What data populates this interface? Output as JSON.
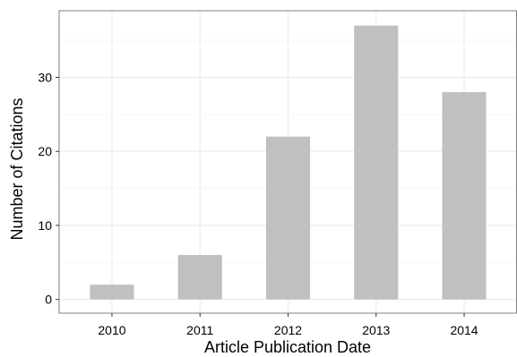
{
  "chart_data": {
    "type": "bar",
    "title": "",
    "xlabel": "Article Publication Date",
    "ylabel": "Number of Citations",
    "categories": [
      "2010",
      "2011",
      "2012",
      "2013",
      "2014"
    ],
    "values": [
      2,
      6,
      22,
      37,
      28
    ],
    "ylim": [
      -1.85,
      39
    ],
    "yticks": [
      0,
      10,
      20,
      30
    ],
    "grid": true,
    "legend": "none",
    "colors": {
      "bar": "#c0c0c0",
      "panel_border": "#7f7f7f",
      "grid_major": "#ebebeb",
      "grid_minor": "#f5f5f5"
    }
  }
}
